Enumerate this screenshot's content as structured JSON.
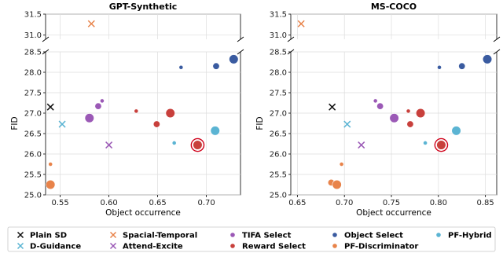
{
  "chart_data": [
    {
      "type": "scatter",
      "title": "GPT-Synthetic",
      "xlabel": "Object occurrence",
      "ylabel": "FID",
      "xlim": [
        0.535,
        0.735
      ],
      "ylim_lower": [
        25.0,
        28.5
      ],
      "ylim_upper": [
        30.9,
        31.5
      ],
      "xticks": [
        "0.55",
        "0.60",
        "0.65",
        "0.70"
      ],
      "xtick_values": [
        0.55,
        0.6,
        0.65,
        0.7
      ],
      "yticks_lower": [
        "25.0",
        "25.5",
        "26.0",
        "26.5",
        "27.0",
        "27.5",
        "28.0",
        "28.5"
      ],
      "ytick_values_lower": [
        25.0,
        25.5,
        26.0,
        26.5,
        27.0,
        27.5,
        28.0,
        28.5
      ],
      "yticks_upper": [
        "31.0",
        "31.5"
      ],
      "ytick_values_upper": [
        31.0,
        31.5
      ],
      "grid": true,
      "broken_y_axis": true,
      "points": [
        {
          "series": "Plain SD",
          "x": 0.54,
          "y": 27.15,
          "size": 1
        },
        {
          "series": "Spacial-Temporal",
          "x": 0.582,
          "y": 31.27,
          "size": 1
        },
        {
          "series": "D-Guidance",
          "x": 0.552,
          "y": 26.73,
          "size": 1
        },
        {
          "series": "Attend-Excite",
          "x": 0.6,
          "y": 26.22,
          "size": 1
        },
        {
          "series": "TIFA Select",
          "x": 0.58,
          "y": 26.88,
          "size": 3
        },
        {
          "series": "TIFA Select",
          "x": 0.589,
          "y": 27.17,
          "size": 2
        },
        {
          "series": "TIFA Select",
          "x": 0.593,
          "y": 27.3,
          "size": 1
        },
        {
          "series": "Reward Select",
          "x": 0.628,
          "y": 27.05,
          "size": 1
        },
        {
          "series": "Reward Select",
          "x": 0.649,
          "y": 26.73,
          "size": 2
        },
        {
          "series": "Reward Select",
          "x": 0.663,
          "y": 27.0,
          "size": 3
        },
        {
          "series": "Reward Select",
          "x": 0.691,
          "y": 26.22,
          "size": 3,
          "highlight": true
        },
        {
          "series": "Object Select",
          "x": 0.674,
          "y": 28.12,
          "size": 1
        },
        {
          "series": "Object Select",
          "x": 0.71,
          "y": 28.15,
          "size": 2
        },
        {
          "series": "Object Select",
          "x": 0.728,
          "y": 28.32,
          "size": 3
        },
        {
          "series": "PF-Discriminator",
          "x": 0.54,
          "y": 25.75,
          "size": 1
        },
        {
          "series": "PF-Discriminator",
          "x": 0.54,
          "y": 25.25,
          "size": 3
        },
        {
          "series": "PF-Hybrid",
          "x": 0.667,
          "y": 26.27,
          "size": 1
        },
        {
          "series": "PF-Hybrid",
          "x": 0.709,
          "y": 26.57,
          "size": 3
        }
      ]
    },
    {
      "type": "scatter",
      "title": "MS-COCO",
      "xlabel": "Object occurrence",
      "ylabel": "FID",
      "xlim": [
        0.643,
        0.862
      ],
      "ylim_lower": [
        25.0,
        28.5
      ],
      "ylim_upper": [
        30.9,
        31.5
      ],
      "xticks": [
        "0.65",
        "0.70",
        "0.75",
        "0.80",
        "0.85"
      ],
      "xtick_values": [
        0.65,
        0.7,
        0.75,
        0.8,
        0.85
      ],
      "yticks_lower": [
        "25.0",
        "25.5",
        "26.0",
        "26.5",
        "27.0",
        "27.5",
        "28.0",
        "28.5"
      ],
      "ytick_values_lower": [
        25.0,
        25.5,
        26.0,
        26.5,
        27.0,
        27.5,
        28.0,
        28.5
      ],
      "yticks_upper": [
        "31.0",
        "31.5"
      ],
      "ytick_values_upper": [
        31.0,
        31.5
      ],
      "grid": true,
      "broken_y_axis": true,
      "points": [
        {
          "series": "Plain SD",
          "x": 0.687,
          "y": 27.15,
          "size": 1
        },
        {
          "series": "Spacial-Temporal",
          "x": 0.654,
          "y": 31.27,
          "size": 1
        },
        {
          "series": "D-Guidance",
          "x": 0.703,
          "y": 26.73,
          "size": 1
        },
        {
          "series": "Attend-Excite",
          "x": 0.718,
          "y": 26.22,
          "size": 1
        },
        {
          "series": "TIFA Select",
          "x": 0.733,
          "y": 27.3,
          "size": 1
        },
        {
          "series": "TIFA Select",
          "x": 0.738,
          "y": 27.17,
          "size": 2
        },
        {
          "series": "TIFA Select",
          "x": 0.753,
          "y": 26.88,
          "size": 3
        },
        {
          "series": "Reward Select",
          "x": 0.768,
          "y": 27.05,
          "size": 1
        },
        {
          "series": "Reward Select",
          "x": 0.77,
          "y": 26.73,
          "size": 2
        },
        {
          "series": "Reward Select",
          "x": 0.781,
          "y": 27.0,
          "size": 3
        },
        {
          "series": "Reward Select",
          "x": 0.803,
          "y": 26.22,
          "size": 3,
          "highlight": true
        },
        {
          "series": "Object Select",
          "x": 0.801,
          "y": 28.12,
          "size": 1
        },
        {
          "series": "Object Select",
          "x": 0.825,
          "y": 28.15,
          "size": 2
        },
        {
          "series": "Object Select",
          "x": 0.852,
          "y": 28.32,
          "size": 3
        },
        {
          "series": "PF-Discriminator",
          "x": 0.697,
          "y": 25.75,
          "size": 1
        },
        {
          "series": "PF-Discriminator",
          "x": 0.686,
          "y": 25.3,
          "size": 2
        },
        {
          "series": "PF-Discriminator",
          "x": 0.692,
          "y": 25.25,
          "size": 3
        },
        {
          "series": "PF-Hybrid",
          "x": 0.786,
          "y": 26.27,
          "size": 1
        },
        {
          "series": "PF-Hybrid",
          "x": 0.819,
          "y": 26.57,
          "size": 3
        }
      ]
    }
  ],
  "legend": {
    "placement": "bottom",
    "entries": [
      {
        "name": "Plain SD",
        "marker": "x",
        "color": "#111111"
      },
      {
        "name": "Spacial-Temporal",
        "marker": "x",
        "color": "#e8834a"
      },
      {
        "name": "TIFA Select",
        "marker": "circle",
        "color": "#9b59b6"
      },
      {
        "name": "Object Select",
        "marker": "circle",
        "color": "#3a5ba0"
      },
      {
        "name": "PF-Hybrid",
        "marker": "circle",
        "color": "#5bb4d3"
      },
      {
        "name": "D-Guidance",
        "marker": "x",
        "color": "#5bb4d3"
      },
      {
        "name": "Attend-Excite",
        "marker": "x",
        "color": "#9b59b6"
      },
      {
        "name": "Reward Select",
        "marker": "circle",
        "color": "#c8403c"
      },
      {
        "name": "PF-Discriminator",
        "marker": "circle",
        "color": "#e8834a"
      }
    ]
  },
  "highlight_color": "#d0021b"
}
